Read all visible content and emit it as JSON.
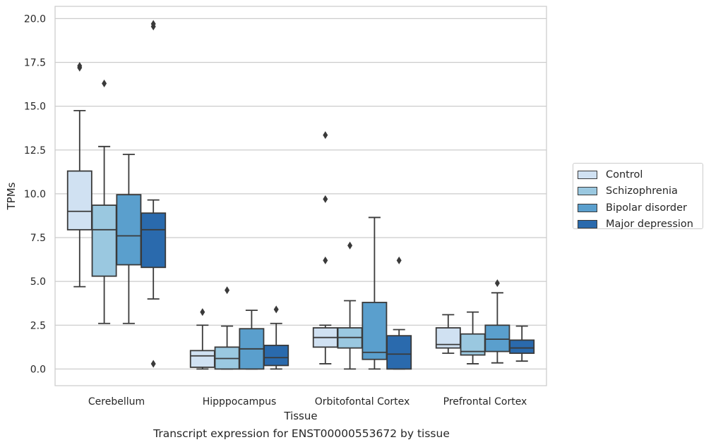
{
  "chart_data": {
    "type": "box",
    "title": "",
    "caption": "Transcript expression for ENST00000553672 by tissue",
    "xlabel": "Tissue",
    "ylabel": "TPMs",
    "ylim": [
      -0.95,
      20.7
    ],
    "yticks": [
      "0.0",
      "2.5",
      "5.0",
      "7.5",
      "10.0",
      "12.5",
      "15.0",
      "17.5",
      "20.0"
    ],
    "grid": "horizontal",
    "legend_position": "right",
    "categories": [
      "Cerebellum",
      "Hipppocampus",
      "Orbitofontal Cortex",
      "Prefrontal Cortex"
    ],
    "series": [
      {
        "name": "Control",
        "color": "#d0e1f2",
        "boxes": [
          {
            "whislo": 4.7,
            "q1": 7.95,
            "med": 9.0,
            "q3": 11.3,
            "whishi": 14.75,
            "fliers": [
              17.2,
              17.3
            ]
          },
          {
            "whislo": 0.0,
            "q1": 0.1,
            "med": 0.75,
            "q3": 1.05,
            "whishi": 2.5,
            "fliers": [
              3.25
            ]
          },
          {
            "whislo": 0.3,
            "q1": 1.25,
            "med": 1.8,
            "q3": 2.35,
            "whishi": 2.5,
            "fliers": [
              6.2,
              9.7,
              13.35
            ]
          },
          {
            "whislo": 0.9,
            "q1": 1.2,
            "med": 1.4,
            "q3": 2.35,
            "whishi": 3.1,
            "fliers": []
          }
        ]
      },
      {
        "name": "Schizophrenia",
        "color": "#9ac8e0",
        "boxes": [
          {
            "whislo": 2.6,
            "q1": 5.3,
            "med": 7.95,
            "q3": 9.35,
            "whishi": 12.7,
            "fliers": [
              16.3
            ]
          },
          {
            "whislo": 0.0,
            "q1": 0.0,
            "med": 0.6,
            "q3": 1.25,
            "whishi": 2.45,
            "fliers": [
              4.5
            ]
          },
          {
            "whislo": 0.0,
            "q1": 1.2,
            "med": 1.8,
            "q3": 2.35,
            "whishi": 3.9,
            "fliers": [
              7.05
            ]
          },
          {
            "whislo": 0.3,
            "q1": 0.8,
            "med": 1.0,
            "q3": 2.0,
            "whishi": 3.25,
            "fliers": []
          }
        ]
      },
      {
        "name": "Bipolar disorder",
        "color": "#5a9fcd",
        "boxes": [
          {
            "whislo": 2.6,
            "q1": 5.95,
            "med": 7.6,
            "q3": 9.95,
            "whishi": 12.25,
            "fliers": []
          },
          {
            "whislo": 0.0,
            "q1": 0.0,
            "med": 1.15,
            "q3": 2.3,
            "whishi": 3.35,
            "fliers": []
          },
          {
            "whislo": 0.0,
            "q1": 0.55,
            "med": 0.95,
            "q3": 3.8,
            "whishi": 8.65,
            "fliers": []
          },
          {
            "whislo": 0.35,
            "q1": 1.0,
            "med": 1.7,
            "q3": 2.5,
            "whishi": 4.35,
            "fliers": [
              4.9
            ]
          }
        ]
      },
      {
        "name": "Major depression",
        "color": "#2a6aad",
        "boxes": [
          {
            "whislo": 4.0,
            "q1": 5.8,
            "med": 7.95,
            "q3": 8.9,
            "whishi": 9.65,
            "fliers": [
              0.3,
              19.55,
              19.7
            ]
          },
          {
            "whislo": 0.0,
            "q1": 0.2,
            "med": 0.65,
            "q3": 1.35,
            "whishi": 2.6,
            "fliers": [
              3.4
            ]
          },
          {
            "whislo": 0.0,
            "q1": 0.0,
            "med": 0.85,
            "q3": 1.9,
            "whishi": 2.25,
            "fliers": [
              6.2
            ]
          },
          {
            "whislo": 0.45,
            "q1": 0.9,
            "med": 1.2,
            "q3": 1.65,
            "whishi": 2.45,
            "fliers": []
          }
        ]
      }
    ]
  }
}
